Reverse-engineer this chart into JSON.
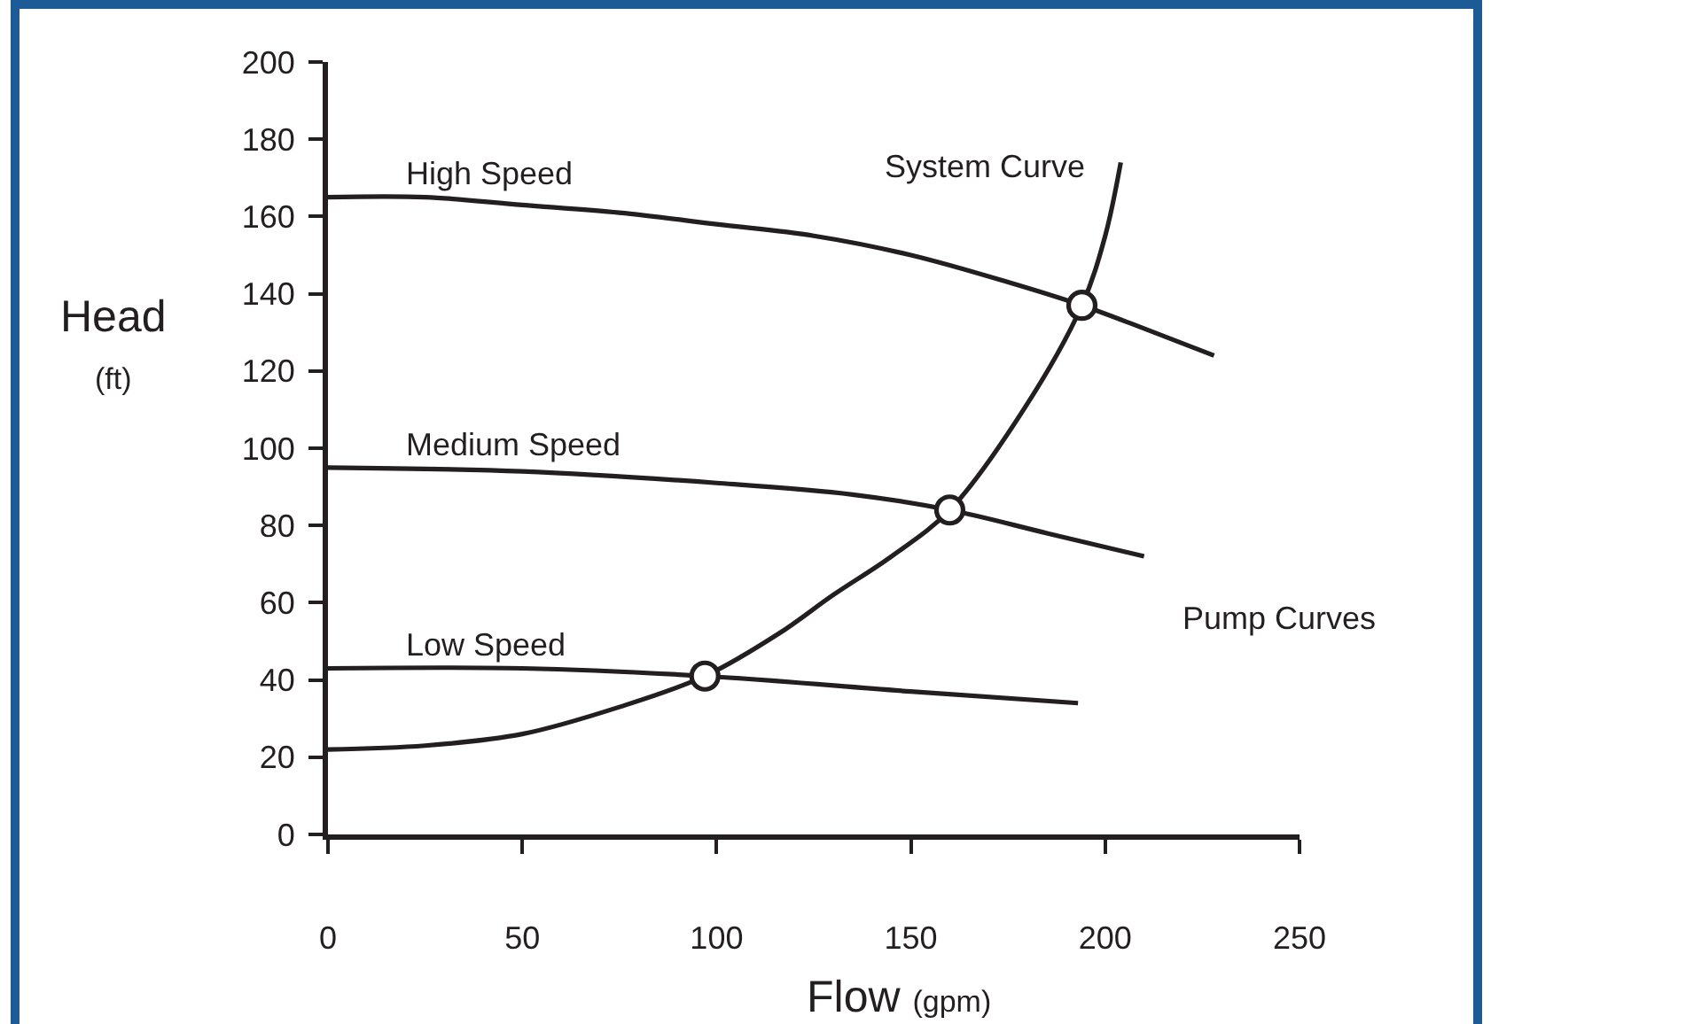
{
  "chart_data": {
    "type": "line",
    "xlabel": "Flow (gpm)",
    "ylabel": "Head (ft)",
    "xlim": [
      0,
      250
    ],
    "ylim": [
      0,
      200
    ],
    "xticks": [
      0,
      50,
      100,
      150,
      200,
      250
    ],
    "yticks": [
      0,
      20,
      40,
      60,
      80,
      100,
      120,
      140,
      160,
      180,
      200
    ],
    "grid": false,
    "legend": false,
    "annotations": [
      "Pump Curves"
    ],
    "series": [
      {
        "name": "High Speed",
        "color": "#231f20",
        "x": [
          0,
          25,
          50,
          75,
          100,
          125,
          150,
          175,
          194,
          210,
          228
        ],
        "values": [
          165,
          165,
          163,
          161,
          158,
          155,
          150,
          143,
          137,
          131,
          124
        ]
      },
      {
        "name": "Medium Speed",
        "color": "#231f20",
        "x": [
          0,
          50,
          100,
          135,
          160,
          185,
          210
        ],
        "values": [
          95,
          94,
          91,
          88,
          84,
          78,
          72
        ]
      },
      {
        "name": "Low Speed",
        "color": "#231f20",
        "x": [
          0,
          50,
          97,
          150,
          193
        ],
        "values": [
          43,
          43,
          41,
          37,
          34
        ]
      },
      {
        "name": "System Curve",
        "color": "#231f20",
        "x": [
          0,
          25,
          50,
          75,
          97,
          116,
          130,
          145,
          160,
          179,
          194,
          200,
          204
        ],
        "values": [
          22,
          23,
          26,
          33,
          41,
          52,
          62,
          72,
          84,
          110,
          137,
          155,
          174
        ]
      },
      {
        "type": "scatter",
        "color": "#231f20",
        "marker": "circle",
        "x": [
          97,
          160,
          194
        ],
        "values": [
          41,
          84,
          137
        ]
      }
    ]
  }
}
